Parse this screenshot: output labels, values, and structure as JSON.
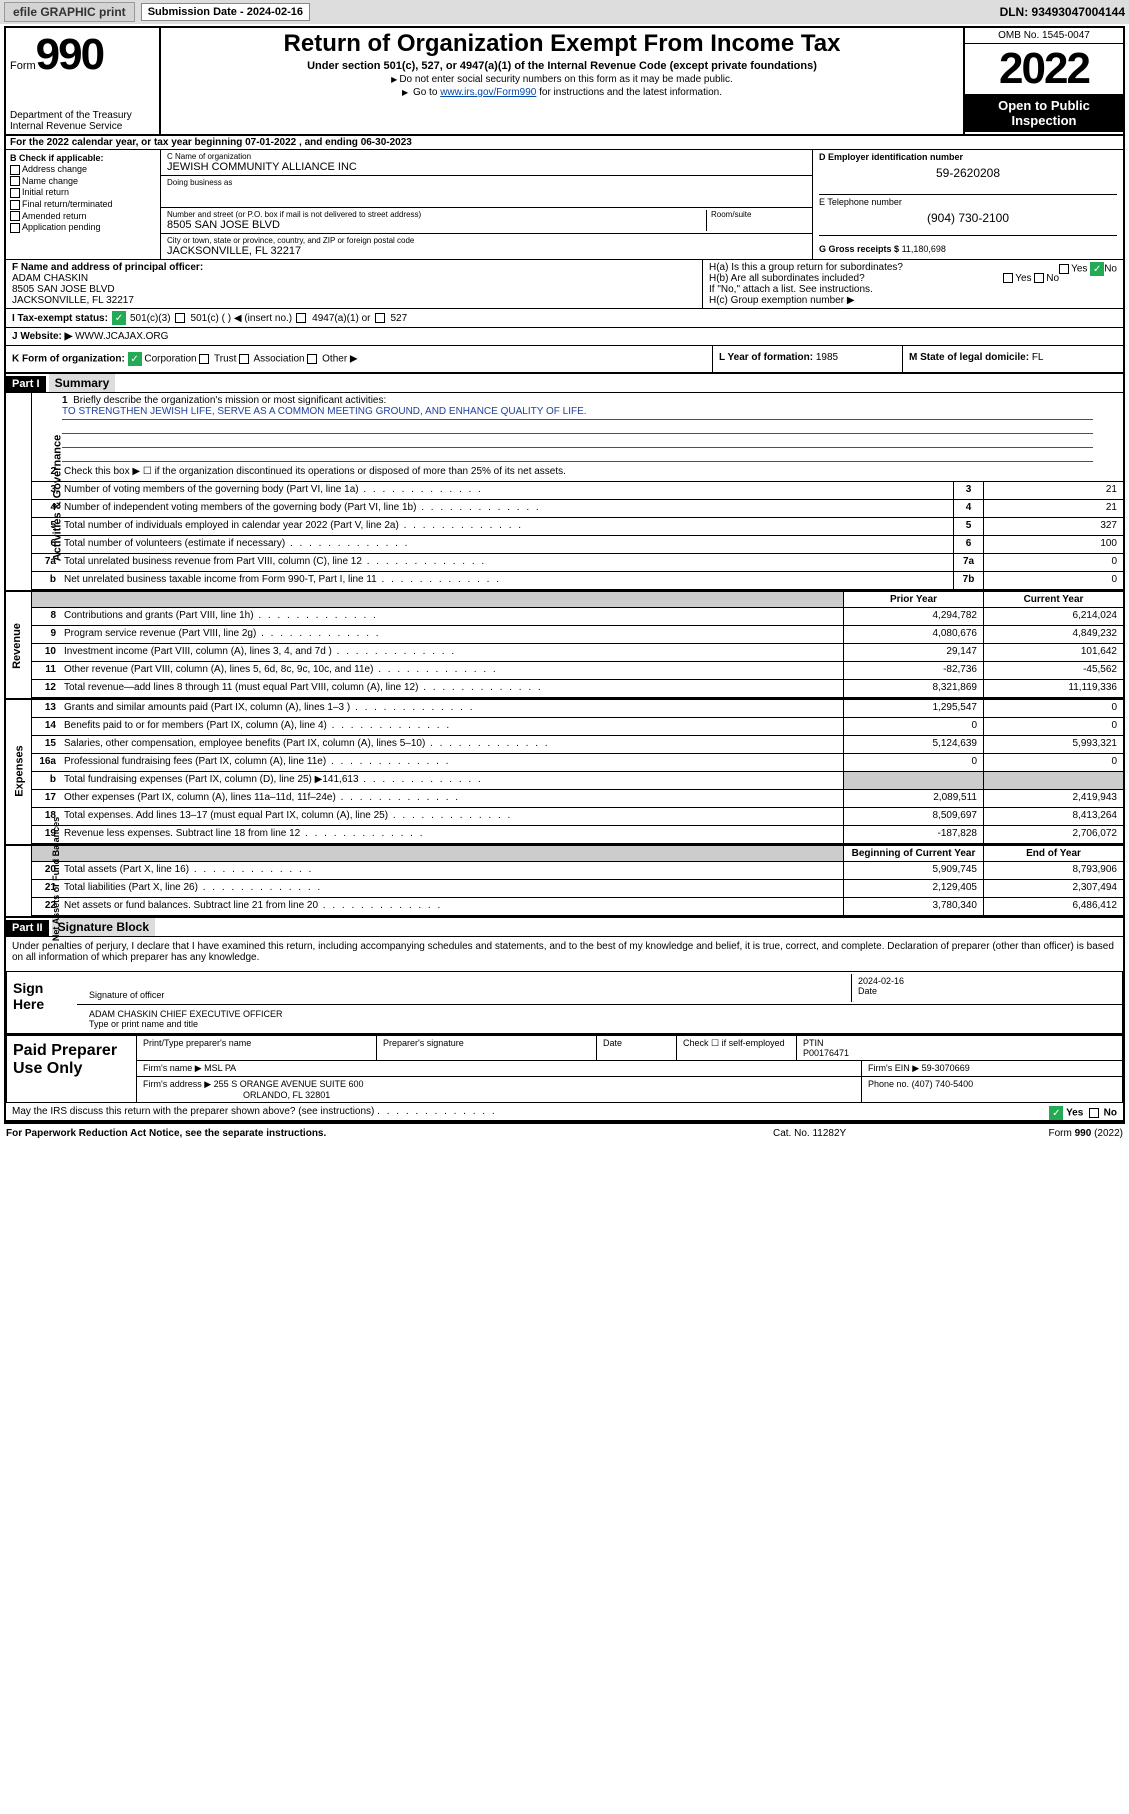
{
  "top": {
    "efile": "efile GRAPHIC print",
    "sub_label": "Submission Date - 2024-02-16",
    "dln": "DLN: 93493047004144"
  },
  "hdr": {
    "form": "Form",
    "num": "990",
    "dept": "Department of the Treasury\nInternal Revenue Service",
    "title": "Return of Organization Exempt From Income Tax",
    "subtitle": "Under section 501(c), 527, or 4947(a)(1) of the Internal Revenue Code (except private foundations)",
    "note1": "Do not enter social security numbers on this form as it may be made public.",
    "note2_pre": "Go to ",
    "note2_link": "www.irs.gov/Form990",
    "note2_post": " for instructions and the latest information.",
    "omb": "OMB No. 1545-0047",
    "year": "2022",
    "open": "Open to Public Inspection"
  },
  "period": "For the 2022 calendar year, or tax year beginning 07-01-2022   , and ending 06-30-2023",
  "b": {
    "title": "B Check if applicable:",
    "addr": "Address change",
    "name": "Name change",
    "init": "Initial return",
    "final": "Final return/terminated",
    "amend": "Amended return",
    "app": "Application pending"
  },
  "c": {
    "lbl": "C Name of organization",
    "org": "JEWISH COMMUNITY ALLIANCE INC",
    "dba_lbl": "Doing business as",
    "addr_lbl": "Number and street (or P.O. box if mail is not delivered to street address)",
    "addr": "8505 SAN JOSE BLVD",
    "room_lbl": "Room/suite",
    "city_lbl": "City or town, state or province, country, and ZIP or foreign postal code",
    "city": "JACKSONVILLE, FL  32217"
  },
  "d": {
    "lbl": "D Employer identification number",
    "val": "59-2620208"
  },
  "e": {
    "lbl": "E Telephone number",
    "val": "(904) 730-2100"
  },
  "g": {
    "lbl": "G Gross receipts $",
    "val": "11,180,698"
  },
  "f": {
    "lbl": "F Name and address of principal officer:",
    "name": "ADAM CHASKIN",
    "addr1": "8505 SAN JOSE BLVD",
    "addr2": "JACKSONVILLE, FL  32217"
  },
  "h": {
    "a": "H(a)  Is this a group return for subordinates?",
    "b": "H(b)  Are all subordinates included?",
    "b2": "If \"No,\" attach a list. See instructions.",
    "c": "H(c)  Group exemption number ▶",
    "yes": "Yes",
    "no": "No"
  },
  "i": {
    "lbl": "I     Tax-exempt status:",
    "o1": "501(c)(3)",
    "o2": "501(c) (  ) ◀ (insert no.)",
    "o3": "4947(a)(1) or",
    "o4": "527"
  },
  "j": {
    "lbl": "J   Website: ▶",
    "val": "WWW.JCAJAX.ORG"
  },
  "k": {
    "lbl": "K Form of organization:",
    "corp": "Corporation",
    "trust": "Trust",
    "assoc": "Association",
    "other": "Other ▶"
  },
  "l": {
    "lbl": "L Year of formation:",
    "val": "1985"
  },
  "m": {
    "lbl": "M State of legal domicile:",
    "val": "FL"
  },
  "part1": {
    "hdr": "Part I",
    "title": "Summary"
  },
  "mission": {
    "q": "Briefly describe the organization's mission or most significant activities:",
    "txt": "TO STRENGTHEN JEWISH LIFE, SERVE AS A COMMON MEETING GROUND, AND ENHANCE QUALITY OF LIFE."
  },
  "lines_top": [
    {
      "n": "2",
      "t": "Check this box ▶ ☐  if the organization discontinued its operations or disposed of more than 25% of its net assets."
    },
    {
      "n": "3",
      "t": "Number of voting members of the governing body (Part VI, line 1a)",
      "box": "3",
      "v": "21"
    },
    {
      "n": "4",
      "t": "Number of independent voting members of the governing body (Part VI, line 1b)",
      "box": "4",
      "v": "21"
    },
    {
      "n": "5",
      "t": "Total number of individuals employed in calendar year 2022 (Part V, line 2a)",
      "box": "5",
      "v": "327"
    },
    {
      "n": "6",
      "t": "Total number of volunteers (estimate if necessary)",
      "box": "6",
      "v": "100"
    },
    {
      "n": "7a",
      "t": "Total unrelated business revenue from Part VIII, column (C), line 12",
      "box": "7a",
      "v": "0"
    },
    {
      "n": "b",
      "t": "Net unrelated business taxable income from Form 990-T, Part I, line 11",
      "box": "7b",
      "v": "0"
    }
  ],
  "col_hdrs": {
    "prior": "Prior Year",
    "curr": "Current Year"
  },
  "revenue": [
    {
      "n": "8",
      "t": "Contributions and grants (Part VIII, line 1h)",
      "p": "4,294,782",
      "c": "6,214,024"
    },
    {
      "n": "9",
      "t": "Program service revenue (Part VIII, line 2g)",
      "p": "4,080,676",
      "c": "4,849,232"
    },
    {
      "n": "10",
      "t": "Investment income (Part VIII, column (A), lines 3, 4, and 7d )",
      "p": "29,147",
      "c": "101,642"
    },
    {
      "n": "11",
      "t": "Other revenue (Part VIII, column (A), lines 5, 6d, 8c, 9c, 10c, and 11e)",
      "p": "-82,736",
      "c": "-45,562"
    },
    {
      "n": "12",
      "t": "Total revenue—add lines 8 through 11 (must equal Part VIII, column (A), line 12)",
      "p": "8,321,869",
      "c": "11,119,336"
    }
  ],
  "expenses": [
    {
      "n": "13",
      "t": "Grants and similar amounts paid (Part IX, column (A), lines 1–3 )",
      "p": "1,295,547",
      "c": "0"
    },
    {
      "n": "14",
      "t": "Benefits paid to or for members (Part IX, column (A), line 4)",
      "p": "0",
      "c": "0"
    },
    {
      "n": "15",
      "t": "Salaries, other compensation, employee benefits (Part IX, column (A), lines 5–10)",
      "p": "5,124,639",
      "c": "5,993,321"
    },
    {
      "n": "16a",
      "t": "Professional fundraising fees (Part IX, column (A), line 11e)",
      "p": "0",
      "c": "0"
    },
    {
      "n": "b",
      "t": "Total fundraising expenses (Part IX, column (D), line 25) ▶141,613",
      "p": "",
      "c": "",
      "shade": true
    },
    {
      "n": "17",
      "t": "Other expenses (Part IX, column (A), lines 11a–11d, 11f–24e)",
      "p": "2,089,511",
      "c": "2,419,943"
    },
    {
      "n": "18",
      "t": "Total expenses. Add lines 13–17 (must equal Part IX, column (A), line 25)",
      "p": "8,509,697",
      "c": "8,413,264"
    },
    {
      "n": "19",
      "t": "Revenue less expenses. Subtract line 18 from line 12",
      "p": "-187,828",
      "c": "2,706,072"
    }
  ],
  "na_hdrs": {
    "beg": "Beginning of Current Year",
    "end": "End of Year"
  },
  "netassets": [
    {
      "n": "20",
      "t": "Total assets (Part X, line 16)",
      "p": "5,909,745",
      "c": "8,793,906"
    },
    {
      "n": "21",
      "t": "Total liabilities (Part X, line 26)",
      "p": "2,129,405",
      "c": "2,307,494"
    },
    {
      "n": "22",
      "t": "Net assets or fund balances. Subtract line 21 from line 20",
      "p": "3,780,340",
      "c": "6,486,412"
    }
  ],
  "vtabs": {
    "ag": "Activities & Governance",
    "rev": "Revenue",
    "exp": "Expenses",
    "na": "Net Assets or\nFund Balances"
  },
  "part2": {
    "hdr": "Part II",
    "title": "Signature Block"
  },
  "penalty": "Under penalties of perjury, I declare that I have examined this return, including accompanying schedules and statements, and to the best of my knowledge and belief, it is true, correct, and complete. Declaration of preparer (other than officer) is based on all information of which preparer has any knowledge.",
  "sign": {
    "here": "Sign Here",
    "sig_lbl": "Signature of officer",
    "date": "2024-02-16",
    "date_lbl": "Date",
    "name": "ADAM CHASKIN  CHIEF EXECUTIVE OFFICER",
    "name_lbl": "Type or print name and title"
  },
  "prep": {
    "title": "Paid Preparer Use Only",
    "pt_lbl": "Print/Type preparer's name",
    "sig_lbl": "Preparer's signature",
    "date_lbl": "Date",
    "check_lbl": "Check ☐ if self-employed",
    "ptin_lbl": "PTIN",
    "ptin": "P00176471",
    "firm_lbl": "Firm's name   ▶",
    "firm": "MSL PA",
    "ein_lbl": "Firm's EIN ▶",
    "ein": "59-3070669",
    "addr_lbl": "Firm's address ▶",
    "addr1": "255 S ORANGE AVENUE SUITE 600",
    "addr2": "ORLANDO, FL  32801",
    "phone_lbl": "Phone no.",
    "phone": "(407) 740-5400"
  },
  "discuss": "May the IRS discuss this return with the preparer shown above? (see instructions)",
  "footer": {
    "l": "For Paperwork Reduction Act Notice, see the separate instructions.",
    "m": "Cat. No. 11282Y",
    "r": "Form 990 (2022)"
  },
  "colors": {
    "link": "#0047ab",
    "check_green": "#2a5",
    "shade": "#cccccc",
    "part_bg": "#000000",
    "title_bg": "#dddddd"
  }
}
